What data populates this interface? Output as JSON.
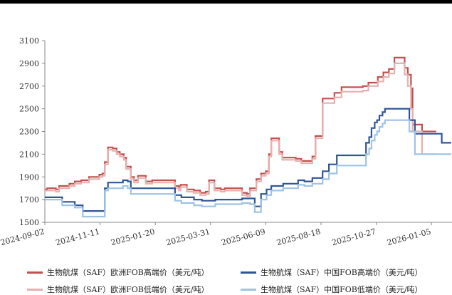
{
  "chart_data": {
    "type": "line",
    "title": "",
    "xlabel": "",
    "ylabel": "",
    "ylim": [
      1500,
      3100
    ],
    "yticks": [
      1500,
      1700,
      1900,
      2100,
      2300,
      2500,
      2700,
      2900,
      3100
    ],
    "xrange": [
      "2024-09-02",
      "2026-01-31"
    ],
    "xticks": [
      "2024-09-02",
      "2024-11-11",
      "2025-01-20",
      "2025-03-31",
      "2025-06-09",
      "2025-08-18",
      "2025-10-27",
      "2026-01-05"
    ],
    "grid": false,
    "legend_position": "bottom",
    "series": [
      {
        "name": "生物航煤（SAF）欧洲FOB高端价（美元/吨）",
        "color": "#c0504d",
        "points": [
          [
            "2024-09-02",
            1790
          ],
          [
            "2024-09-05",
            1800
          ],
          [
            "2024-09-16",
            1790
          ],
          [
            "2024-09-20",
            1820
          ],
          [
            "2024-10-03",
            1840
          ],
          [
            "2024-10-10",
            1860
          ],
          [
            "2024-10-18",
            1870
          ],
          [
            "2024-10-28",
            1900
          ],
          [
            "2024-11-10",
            1920
          ],
          [
            "2024-11-14",
            1930
          ],
          [
            "2024-11-17",
            2030
          ],
          [
            "2024-11-21",
            2160
          ],
          [
            "2024-11-27",
            2150
          ],
          [
            "2024-12-02",
            2120
          ],
          [
            "2024-12-06",
            2100
          ],
          [
            "2024-12-11",
            2070
          ],
          [
            "2024-12-14",
            1990
          ],
          [
            "2024-12-20",
            1900
          ],
          [
            "2024-12-24",
            1870
          ],
          [
            "2024-12-29",
            1910
          ],
          [
            "2025-01-08",
            1860
          ],
          [
            "2025-01-16",
            1870
          ],
          [
            "2025-02-14",
            1820
          ],
          [
            "2025-02-19",
            1800
          ],
          [
            "2025-02-21",
            1830
          ],
          [
            "2025-03-01",
            1790
          ],
          [
            "2025-03-10",
            1780
          ],
          [
            "2025-03-18",
            1760
          ],
          [
            "2025-03-25",
            1770
          ],
          [
            "2025-03-29",
            1870
          ],
          [
            "2025-04-05",
            1800
          ],
          [
            "2025-04-13",
            1790
          ],
          [
            "2025-04-18",
            1800
          ],
          [
            "2025-05-10",
            1760
          ],
          [
            "2025-05-16",
            1750
          ],
          [
            "2025-05-20",
            1800
          ],
          [
            "2025-05-28",
            1880
          ],
          [
            "2025-06-03",
            1930
          ],
          [
            "2025-06-09",
            1950
          ],
          [
            "2025-06-13",
            2100
          ],
          [
            "2025-06-16",
            2240
          ],
          [
            "2025-06-26",
            2120
          ],
          [
            "2025-06-30",
            2070
          ],
          [
            "2025-07-17",
            2060
          ],
          [
            "2025-07-24",
            2040
          ],
          [
            "2025-08-07",
            2080
          ],
          [
            "2025-08-11",
            2260
          ],
          [
            "2025-08-20",
            2590
          ],
          [
            "2025-09-04",
            2640
          ],
          [
            "2025-09-13",
            2690
          ],
          [
            "2025-10-10",
            2700
          ],
          [
            "2025-10-17",
            2730
          ],
          [
            "2025-10-29",
            2780
          ],
          [
            "2025-11-05",
            2820
          ],
          [
            "2025-11-12",
            2850
          ],
          [
            "2025-11-19",
            2950
          ],
          [
            "2025-12-02",
            2860
          ],
          [
            "2025-12-06",
            2800
          ],
          [
            "2025-12-10",
            2680
          ],
          [
            "2025-12-12",
            2360
          ],
          [
            "2025-12-24",
            2300
          ],
          [
            "2026-01-11",
            2300
          ]
        ]
      },
      {
        "name": "生物航煤（SAF）欧洲FOB低端价（美元/吨）",
        "color": "#e6b0ae",
        "points": [
          [
            "2024-09-02",
            1780
          ],
          [
            "2024-09-05",
            1780
          ],
          [
            "2024-09-16",
            1770
          ],
          [
            "2024-09-20",
            1800
          ],
          [
            "2024-10-03",
            1820
          ],
          [
            "2024-10-10",
            1840
          ],
          [
            "2024-10-18",
            1850
          ],
          [
            "2024-10-28",
            1880
          ],
          [
            "2024-11-10",
            1900
          ],
          [
            "2024-11-14",
            1910
          ],
          [
            "2024-11-17",
            2010
          ],
          [
            "2024-11-21",
            2140
          ],
          [
            "2024-11-27",
            2130
          ],
          [
            "2024-12-02",
            2100
          ],
          [
            "2024-12-06",
            2080
          ],
          [
            "2024-12-11",
            2050
          ],
          [
            "2024-12-14",
            1970
          ],
          [
            "2024-12-20",
            1880
          ],
          [
            "2024-12-24",
            1850
          ],
          [
            "2024-12-29",
            1890
          ],
          [
            "2025-01-08",
            1840
          ],
          [
            "2025-01-16",
            1850
          ],
          [
            "2025-02-14",
            1800
          ],
          [
            "2025-02-19",
            1780
          ],
          [
            "2025-02-21",
            1810
          ],
          [
            "2025-03-01",
            1770
          ],
          [
            "2025-03-10",
            1760
          ],
          [
            "2025-03-18",
            1740
          ],
          [
            "2025-03-25",
            1750
          ],
          [
            "2025-03-29",
            1850
          ],
          [
            "2025-04-05",
            1780
          ],
          [
            "2025-04-13",
            1770
          ],
          [
            "2025-04-18",
            1780
          ],
          [
            "2025-05-10",
            1740
          ],
          [
            "2025-05-16",
            1730
          ],
          [
            "2025-05-20",
            1780
          ],
          [
            "2025-05-28",
            1860
          ],
          [
            "2025-06-03",
            1910
          ],
          [
            "2025-06-09",
            1930
          ],
          [
            "2025-06-13",
            2080
          ],
          [
            "2025-06-16",
            2220
          ],
          [
            "2025-06-26",
            2100
          ],
          [
            "2025-06-30",
            2050
          ],
          [
            "2025-07-17",
            2040
          ],
          [
            "2025-07-24",
            2020
          ],
          [
            "2025-08-07",
            2060
          ],
          [
            "2025-08-11",
            2240
          ],
          [
            "2025-08-20",
            2550
          ],
          [
            "2025-09-04",
            2600
          ],
          [
            "2025-09-13",
            2650
          ],
          [
            "2025-10-10",
            2660
          ],
          [
            "2025-10-17",
            2700
          ],
          [
            "2025-10-29",
            2740
          ],
          [
            "2025-11-05",
            2780
          ],
          [
            "2025-11-12",
            2810
          ],
          [
            "2025-11-19",
            2900
          ],
          [
            "2025-12-02",
            2800
          ],
          [
            "2025-12-06",
            2700
          ],
          [
            "2025-12-10",
            2500
          ],
          [
            "2025-12-12",
            2300
          ],
          [
            "2025-12-24",
            2100
          ],
          [
            "2026-01-11",
            2100
          ]
        ]
      },
      {
        "name": "生物航煤（SAF）中国FOB高端价（美元/吨）",
        "color": "#2f5597",
        "points": [
          [
            "2024-09-02",
            1720
          ],
          [
            "2024-09-24",
            1680
          ],
          [
            "2024-10-10",
            1650
          ],
          [
            "2024-10-20",
            1600
          ],
          [
            "2024-11-17",
            1800
          ],
          [
            "2024-11-21",
            1850
          ],
          [
            "2024-12-10",
            1870
          ],
          [
            "2024-12-16",
            1860
          ],
          [
            "2024-12-20",
            1800
          ],
          [
            "2025-02-01",
            1800
          ],
          [
            "2025-02-14",
            1740
          ],
          [
            "2025-02-22",
            1720
          ],
          [
            "2025-03-10",
            1700
          ],
          [
            "2025-03-20",
            1690
          ],
          [
            "2025-04-06",
            1700
          ],
          [
            "2025-05-10",
            1710
          ],
          [
            "2025-05-20",
            1710
          ],
          [
            "2025-05-26",
            1640
          ],
          [
            "2025-06-03",
            1750
          ],
          [
            "2025-06-10",
            1790
          ],
          [
            "2025-06-16",
            1820
          ],
          [
            "2025-07-01",
            1840
          ],
          [
            "2025-07-20",
            1870
          ],
          [
            "2025-07-28",
            1860
          ],
          [
            "2025-08-07",
            1890
          ],
          [
            "2025-08-20",
            1950
          ],
          [
            "2025-08-28",
            2010
          ],
          [
            "2025-09-07",
            2090
          ],
          [
            "2025-10-14",
            2200
          ],
          [
            "2025-10-18",
            2250
          ],
          [
            "2025-10-21",
            2330
          ],
          [
            "2025-10-25",
            2380
          ],
          [
            "2025-10-28",
            2400
          ],
          [
            "2025-10-31",
            2440
          ],
          [
            "2025-11-04",
            2470
          ],
          [
            "2025-11-07",
            2500
          ],
          [
            "2025-12-08",
            2400
          ],
          [
            "2025-12-15",
            2280
          ],
          [
            "2026-01-01",
            2280
          ],
          [
            "2026-01-18",
            2200
          ],
          [
            "2026-01-30",
            2200
          ]
        ]
      },
      {
        "name": "生物航煤（SAF）中国FOB低端价（美元/吨）",
        "color": "#9dc3e6",
        "points": [
          [
            "2024-09-02",
            1700
          ],
          [
            "2024-09-24",
            1650
          ],
          [
            "2024-10-10",
            1630
          ],
          [
            "2024-10-20",
            1550
          ],
          [
            "2024-11-17",
            1780
          ],
          [
            "2024-11-21",
            1800
          ],
          [
            "2024-12-10",
            1820
          ],
          [
            "2024-12-16",
            1800
          ],
          [
            "2024-12-20",
            1750
          ],
          [
            "2025-02-01",
            1750
          ],
          [
            "2025-02-14",
            1690
          ],
          [
            "2025-02-22",
            1670
          ],
          [
            "2025-03-10",
            1650
          ],
          [
            "2025-03-20",
            1640
          ],
          [
            "2025-04-06",
            1660
          ],
          [
            "2025-05-10",
            1670
          ],
          [
            "2025-05-20",
            1660
          ],
          [
            "2025-05-26",
            1590
          ],
          [
            "2025-06-03",
            1700
          ],
          [
            "2025-06-10",
            1740
          ],
          [
            "2025-06-16",
            1780
          ],
          [
            "2025-07-01",
            1800
          ],
          [
            "2025-07-20",
            1830
          ],
          [
            "2025-07-28",
            1820
          ],
          [
            "2025-08-07",
            1840
          ],
          [
            "2025-08-20",
            1880
          ],
          [
            "2025-08-28",
            1930
          ],
          [
            "2025-09-07",
            2000
          ],
          [
            "2025-10-14",
            2100
          ],
          [
            "2025-10-18",
            2150
          ],
          [
            "2025-10-21",
            2220
          ],
          [
            "2025-10-25",
            2270
          ],
          [
            "2025-10-28",
            2300
          ],
          [
            "2025-10-31",
            2340
          ],
          [
            "2025-11-04",
            2370
          ],
          [
            "2025-11-07",
            2400
          ],
          [
            "2025-12-08",
            2300
          ],
          [
            "2025-12-15",
            2100
          ],
          [
            "2026-01-01",
            2100
          ],
          [
            "2026-01-18",
            2100
          ],
          [
            "2026-01-30",
            2100
          ]
        ]
      }
    ]
  },
  "legend": {
    "items": [
      {
        "label": "生物航煤（SAF）欧洲FOB高端价（美元/吨）",
        "color": "#c0504d"
      },
      {
        "label": "生物航煤（SAF）中国FOB高端价（美元/吨）",
        "color": "#2f5597"
      },
      {
        "label": "生物航煤（SAF）欧洲FOB低端价（美元/吨）",
        "color": "#e6b0ae"
      },
      {
        "label": "生物航煤（SAF）中国FOB低端价（美元/吨）",
        "color": "#9dc3e6"
      }
    ]
  }
}
